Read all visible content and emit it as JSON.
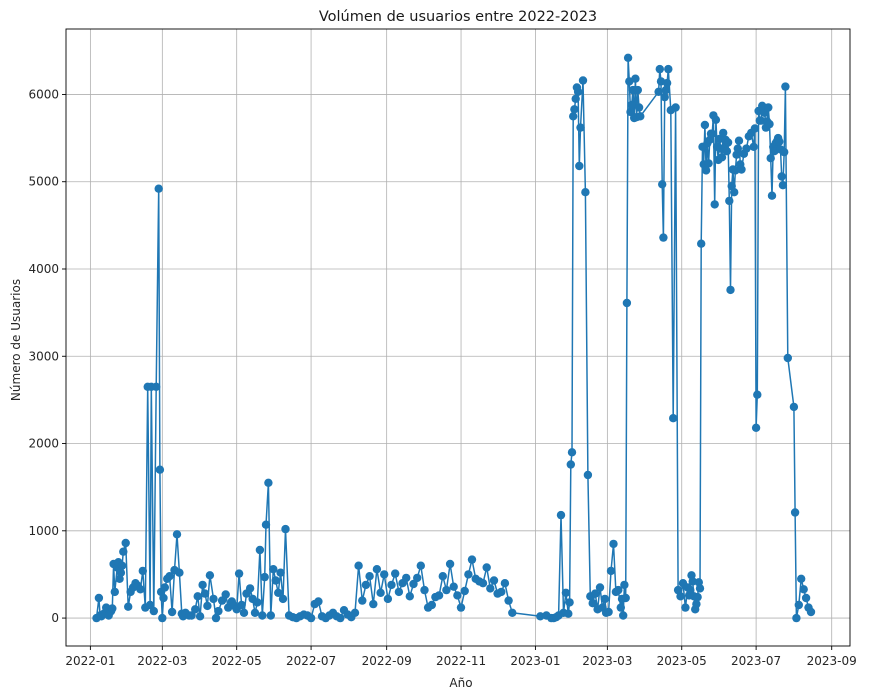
{
  "chart_data": {
    "type": "line",
    "title": "Volúmen de usuarios entre 2022-2023",
    "xlabel": "Año",
    "ylabel": "Número de Usuarios",
    "xlim": [
      "2021-12-12",
      "2023-09-16"
    ],
    "ylim": [
      -320,
      6750
    ],
    "grid": true,
    "marker": "circle",
    "colors": {
      "series": "#1f77b4",
      "grid": "#b0b0b0"
    },
    "x_ticks": [
      "2022-01",
      "2022-03",
      "2022-05",
      "2022-07",
      "2022-09",
      "2022-11",
      "2023-01",
      "2023-03",
      "2023-05",
      "2023-07",
      "2023-09"
    ],
    "y_ticks": [
      "0",
      "1000",
      "2000",
      "3000",
      "4000",
      "5000",
      "6000"
    ],
    "series": [
      {
        "x": [
          "2022-01-06",
          "2022-01-08",
          "2022-01-09",
          "2022-01-10",
          "2022-01-12",
          "2022-01-14",
          "2022-01-16",
          "2022-01-18",
          "2022-01-19",
          "2022-01-20",
          "2022-01-21",
          "2022-01-23",
          "2022-01-24",
          "2022-01-25",
          "2022-01-26",
          "2022-01-27",
          "2022-01-28",
          "2022-01-30",
          "2022-02-01",
          "2022-02-03",
          "2022-02-05",
          "2022-02-07",
          "2022-02-09",
          "2022-02-11",
          "2022-02-13",
          "2022-02-15",
          "2022-02-17",
          "2022-02-19",
          "2022-02-20",
          "2022-02-22",
          "2022-02-24",
          "2022-02-26",
          "2022-02-27",
          "2022-02-28",
          "2022-03-01",
          "2022-03-02",
          "2022-03-03",
          "2022-03-05",
          "2022-03-07",
          "2022-03-09",
          "2022-03-11",
          "2022-03-13",
          "2022-03-15",
          "2022-03-17",
          "2022-03-18",
          "2022-03-20",
          "2022-03-23",
          "2022-03-25",
          "2022-03-28",
          "2022-03-30",
          "2022-04-01",
          "2022-04-03",
          "2022-04-05",
          "2022-04-07",
          "2022-04-09",
          "2022-04-12",
          "2022-04-14",
          "2022-04-16",
          "2022-04-19",
          "2022-04-22",
          "2022-04-24",
          "2022-04-27",
          "2022-04-29",
          "2022-05-01",
          "2022-05-03",
          "2022-05-05",
          "2022-05-07",
          "2022-05-09",
          "2022-05-12",
          "2022-05-14",
          "2022-05-16",
          "2022-05-18",
          "2022-05-20",
          "2022-05-22",
          "2022-05-24",
          "2022-05-25",
          "2022-05-27",
          "2022-05-29",
          "2022-05-31",
          "2022-06-02",
          "2022-06-04",
          "2022-06-06",
          "2022-06-08",
          "2022-06-10",
          "2022-06-13",
          "2022-06-16",
          "2022-06-19",
          "2022-06-22",
          "2022-06-25",
          "2022-06-28",
          "2022-07-01",
          "2022-07-04",
          "2022-07-07",
          "2022-07-10",
          "2022-07-13",
          "2022-07-16",
          "2022-07-19",
          "2022-07-22",
          "2022-07-25",
          "2022-07-28",
          "2022-07-31",
          "2022-08-03",
          "2022-08-06",
          "2022-08-09",
          "2022-08-12",
          "2022-08-15",
          "2022-08-18",
          "2022-08-21",
          "2022-08-24",
          "2022-08-27",
          "2022-08-30",
          "2022-09-02",
          "2022-09-05",
          "2022-09-08",
          "2022-09-11",
          "2022-09-14",
          "2022-09-17",
          "2022-09-20",
          "2022-09-23",
          "2022-09-26",
          "2022-09-29",
          "2022-10-02",
          "2022-10-05",
          "2022-10-08",
          "2022-10-11",
          "2022-10-14",
          "2022-10-17",
          "2022-10-20",
          "2022-10-23",
          "2022-10-26",
          "2022-10-29",
          "2022-11-01",
          "2022-11-04",
          "2022-11-07",
          "2022-11-10",
          "2022-11-13",
          "2022-11-16",
          "2022-11-19",
          "2022-11-22",
          "2022-11-25",
          "2022-11-28",
          "2022-12-01",
          "2022-12-04",
          "2022-12-07",
          "2022-12-10",
          "2022-12-13",
          "2023-01-05",
          "2023-01-10",
          "2023-01-14",
          "2023-01-16",
          "2023-01-18",
          "2023-01-20",
          "2023-01-22",
          "2023-01-24",
          "2023-01-26",
          "2023-01-28",
          "2023-01-29",
          "2023-01-30",
          "2023-01-31",
          "2023-02-01",
          "2023-02-02",
          "2023-02-03",
          "2023-02-04",
          "2023-02-05",
          "2023-02-06",
          "2023-02-07",
          "2023-02-09",
          "2023-02-11",
          "2023-02-13",
          "2023-02-15",
          "2023-02-17",
          "2023-02-19",
          "2023-02-21",
          "2023-02-23",
          "2023-02-25",
          "2023-02-27",
          "2023-02-28",
          "2023-03-02",
          "2023-03-04",
          "2023-03-06",
          "2023-03-08",
          "2023-03-10",
          "2023-03-12",
          "2023-03-13",
          "2023-03-14",
          "2023-03-15",
          "2023-03-16",
          "2023-03-17",
          "2023-03-18",
          "2023-03-19",
          "2023-03-20",
          "2023-03-21",
          "2023-03-22",
          "2023-03-23",
          "2023-03-24",
          "2023-03-25",
          "2023-03-26",
          "2023-03-27",
          "2023-03-28",
          "2023-04-12",
          "2023-04-13",
          "2023-04-14",
          "2023-04-15",
          "2023-04-16",
          "2023-04-17",
          "2023-04-18",
          "2023-04-19",
          "2023-04-20",
          "2023-04-22",
          "2023-04-24",
          "2023-04-26",
          "2023-04-28",
          "2023-04-30",
          "2023-05-02",
          "2023-05-04",
          "2023-05-06",
          "2023-05-07",
          "2023-05-08",
          "2023-05-09",
          "2023-05-10",
          "2023-05-11",
          "2023-05-12",
          "2023-05-13",
          "2023-05-14",
          "2023-05-15",
          "2023-05-16",
          "2023-05-17",
          "2023-05-18",
          "2023-05-19",
          "2023-05-20",
          "2023-05-21",
          "2023-05-22",
          "2023-05-23",
          "2023-05-24",
          "2023-05-25",
          "2023-05-26",
          "2023-05-27",
          "2023-05-28",
          "2023-05-29",
          "2023-05-30",
          "2023-05-31",
          "2023-06-01",
          "2023-06-02",
          "2023-06-03",
          "2023-06-04",
          "2023-06-05",
          "2023-06-06",
          "2023-06-07",
          "2023-06-08",
          "2023-06-09",
          "2023-06-10",
          "2023-06-11",
          "2023-06-12",
          "2023-06-13",
          "2023-06-14",
          "2023-06-15",
          "2023-06-16",
          "2023-06-17",
          "2023-06-18",
          "2023-06-19",
          "2023-06-21",
          "2023-06-23",
          "2023-06-25",
          "2023-06-27",
          "2023-06-29",
          "2023-06-30",
          "2023-07-01",
          "2023-07-02",
          "2023-07-03",
          "2023-07-04",
          "2023-07-05",
          "2023-07-06",
          "2023-07-07",
          "2023-07-08",
          "2023-07-09",
          "2023-07-10",
          "2023-07-11",
          "2023-07-12",
          "2023-07-13",
          "2023-07-14",
          "2023-07-15",
          "2023-07-16",
          "2023-07-17",
          "2023-07-18",
          "2023-07-19",
          "2023-07-20",
          "2023-07-21",
          "2023-07-22",
          "2023-07-23",
          "2023-07-24",
          "2023-07-25",
          "2023-07-27",
          "2023-08-01",
          "2023-08-02",
          "2023-08-03",
          "2023-08-05",
          "2023-08-07",
          "2023-08-09",
          "2023-08-11",
          "2023-08-13",
          "2023-08-15"
        ],
        "y": [
          0,
          230,
          30,
          20,
          50,
          120,
          30,
          80,
          110,
          620,
          300,
          580,
          640,
          450,
          520,
          600,
          760,
          860,
          130,
          300,
          350,
          400,
          370,
          330,
          540,
          120,
          2650,
          150,
          2650,
          80,
          2650,
          4920,
          1700,
          300,
          0,
          230,
          350,
          450,
          480,
          70,
          550,
          960,
          520,
          50,
          20,
          60,
          30,
          30,
          100,
          250,
          20,
          380,
          280,
          140,
          490,
          220,
          0,
          80,
          200,
          270,
          120,
          190,
          140,
          100,
          510,
          150,
          60,
          280,
          340,
          220,
          60,
          180,
          780,
          30,
          470,
          1070,
          1550,
          30,
          560,
          430,
          290,
          520,
          220,
          1020,
          30,
          10,
          0,
          20,
          40,
          30,
          0,
          160,
          190,
          20,
          0,
          30,
          60,
          20,
          0,
          90,
          40,
          10,
          60,
          600,
          200,
          380,
          480,
          160,
          560,
          290,
          500,
          220,
          380,
          510,
          300,
          400,
          460,
          250,
          390,
          460,
          600,
          320,
          120,
          150,
          240,
          260,
          480,
          320,
          620,
          360,
          260,
          120,
          310,
          500,
          670,
          450,
          420,
          400,
          580,
          340,
          430,
          280,
          300,
          400,
          200,
          60,
          20,
          30,
          0,
          0,
          10,
          30,
          1180,
          60,
          290,
          50,
          180,
          1760,
          1900,
          5750,
          5830,
          5950,
          6080,
          6030,
          5180,
          5620,
          6160,
          4880,
          1640,
          250,
          170,
          280,
          100,
          350,
          120,
          220,
          60,
          70,
          540,
          850,
          300,
          320,
          120,
          220,
          30,
          380,
          230,
          3610,
          6420,
          6150,
          5800,
          5880,
          6050,
          5730,
          6180,
          5740,
          6050,
          5850,
          5750,
          6030,
          6290,
          6150,
          4970,
          4360,
          5970,
          6050,
          6130,
          6290,
          5820,
          2290,
          5850,
          320,
          250,
          400,
          120,
          350,
          260,
          320,
          490,
          420,
          250,
          100,
          160,
          240,
          410,
          340,
          4290,
          5400,
          5200,
          5650,
          5130,
          5440,
          5210,
          5480,
          5550,
          5550,
          5760,
          4740,
          5710,
          5400,
          5250,
          5490,
          5380,
          5280,
          5560,
          5390,
          5480,
          5350,
          5450,
          4780,
          3760,
          4950,
          5140,
          4880,
          5130,
          5310,
          5380,
          5470,
          5200,
          5140,
          5320,
          5380,
          5520,
          5560,
          5400,
          5610,
          2180,
          2560,
          5810,
          5700,
          5700,
          5870,
          5850,
          5790,
          5620,
          5690,
          5850,
          5660,
          5270,
          4840,
          5400,
          5350,
          5440,
          5460,
          5500,
          5460,
          5370,
          5060,
          4960,
          5340,
          6090,
          2980,
          2420,
          1210,
          0,
          150,
          450,
          330,
          230,
          120,
          70
        ]
      }
    ]
  }
}
